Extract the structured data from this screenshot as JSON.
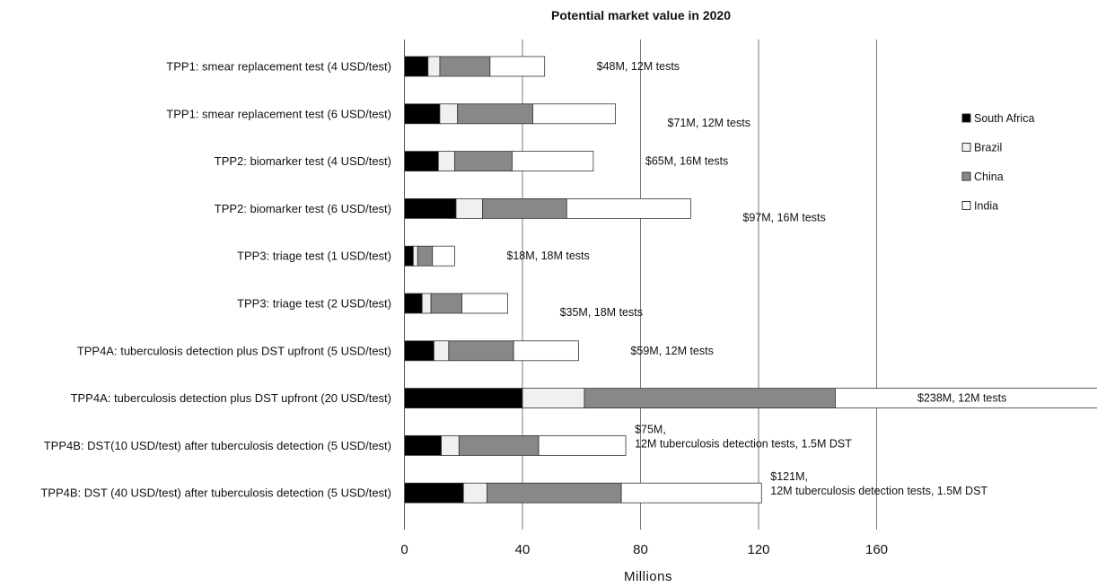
{
  "chart_data": {
    "type": "bar",
    "orientation": "horizontal",
    "stacked": true,
    "title": "Potential market value in 2020",
    "xlabel": "Millions",
    "ylabel": "",
    "xlim": [
      0,
      235
    ],
    "xticks": [
      0,
      40,
      80,
      120,
      160
    ],
    "grid": "vertical",
    "legend_position": "right",
    "categories": [
      "TPP1: smear replacement test (4 USD/test)",
      "TPP1: smear replacement test (6 USD/test)",
      "TPP2: biomarker test (4 USD/test)",
      "TPP2: biomarker test (6 USD/test)",
      "TPP3: triage test (1 USD/test)",
      "TPP3: triage test (2 USD/test)",
      "TPP4A: tuberculosis detection plus DST upfront (5 USD/test)",
      "TPP4A: tuberculosis detection plus DST upfront (20 USD/test)",
      "TPP4B: DST(10 USD/test) after tuberculosis detection (5 USD/test)",
      "TPP4B: DST (40 USD/test) after tuberculosis detection (5 USD/test)"
    ],
    "series": [
      {
        "name": "South Africa",
        "color": "#000000",
        "values": [
          8,
          12,
          11.5,
          17.5,
          3,
          6,
          10,
          40,
          12.5,
          20
        ]
      },
      {
        "name": "Brazil",
        "color": "#f0f0f0",
        "values": [
          4,
          6,
          5.5,
          9,
          1.5,
          3,
          5,
          21,
          6,
          8
        ]
      },
      {
        "name": "China",
        "color": "#888888",
        "values": [
          17,
          25.5,
          19.5,
          28.5,
          5,
          10.5,
          22,
          85,
          27,
          45.5
        ]
      },
      {
        "name": "India",
        "color": "#ffffff",
        "values": [
          18.5,
          28,
          27.5,
          42,
          7.5,
          15.5,
          22,
          92,
          29.5,
          47.5
        ]
      }
    ],
    "annotations": [
      [
        "$48M, 12M tests"
      ],
      [
        "$71M, 12M tests"
      ],
      [
        "$65M, 16M tests"
      ],
      [
        "$97M, 16M tests"
      ],
      [
        "$18M, 18M tests"
      ],
      [
        "$35M, 18M tests"
      ],
      [
        "$59M, 12M tests"
      ],
      [
        "$238M, 12M tests"
      ],
      [
        "$75M,",
        "12M tuberculosis detection tests, 1.5M DST"
      ],
      [
        "$121M,",
        "12M tuberculosis detection tests, 1.5M DST"
      ]
    ]
  }
}
